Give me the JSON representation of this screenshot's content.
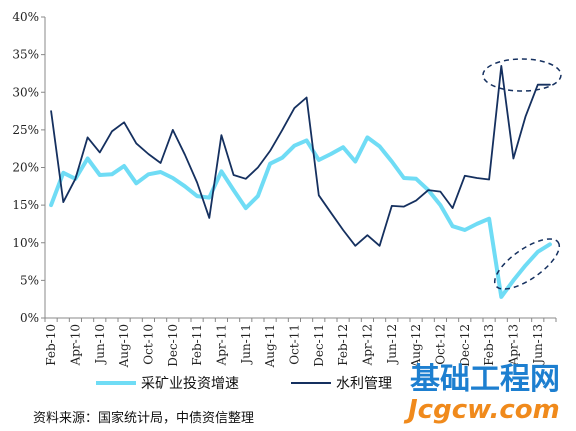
{
  "chart_data": {
    "type": "line",
    "x": [
      "Feb-10",
      "Mar-10",
      "Apr-10",
      "May-10",
      "Jun-10",
      "Jul-10",
      "Aug-10",
      "Sep-10",
      "Oct-10",
      "Nov-10",
      "Dec-10",
      "Jan-11",
      "Feb-11",
      "Mar-11",
      "Apr-11",
      "May-11",
      "Jun-11",
      "Jul-11",
      "Aug-11",
      "Sep-11",
      "Oct-11",
      "Nov-11",
      "Dec-11",
      "Jan-12",
      "Feb-12",
      "Mar-12",
      "Apr-12",
      "May-12",
      "Jun-12",
      "Jul-12",
      "Aug-12",
      "Sep-12",
      "Oct-12",
      "Nov-12",
      "Dec-12",
      "Jan-13",
      "Feb-13",
      "Mar-13",
      "Apr-13",
      "May-13",
      "Jun-13",
      "Jul-13"
    ],
    "x_tick_labels": [
      "Feb-10",
      "Apr-10",
      "Jun-10",
      "Aug-10",
      "Oct-10",
      "Dec-10",
      "Feb-11",
      "Apr-11",
      "Jun-11",
      "Aug-11",
      "Oct-11",
      "Dec-11",
      "Feb-12",
      "Apr-12",
      "Jun-12",
      "Aug-12",
      "Oct-12",
      "Dec-12",
      "Feb-13",
      "Apr-13",
      "Jun-13"
    ],
    "series": [
      {
        "name": "采矿业投资增速",
        "color": "#6fdcf5",
        "values": [
          15.0,
          19.3,
          18.5,
          21.2,
          19.0,
          19.1,
          20.2,
          17.9,
          19.1,
          19.4,
          18.6,
          17.5,
          16.2,
          16.0,
          19.5,
          17.0,
          14.6,
          16.2,
          20.5,
          21.3,
          22.9,
          23.6,
          21.0,
          21.8,
          22.7,
          20.8,
          24.0,
          22.8,
          20.8,
          18.6,
          18.5,
          17.0,
          15.0,
          12.2,
          11.7,
          12.5,
          13.2,
          2.8,
          5.0,
          7.0,
          8.8,
          9.8
        ]
      },
      {
        "name": "水利管理",
        "color": "#15305f",
        "values": [
          27.5,
          15.4,
          18.5,
          24.0,
          22.0,
          24.8,
          26.0,
          23.2,
          21.8,
          20.6,
          25.0,
          21.7,
          18.0,
          13.3,
          24.3,
          19.0,
          18.5,
          20.0,
          22.2,
          25.0,
          27.9,
          29.3,
          16.3,
          14.0,
          11.7,
          9.6,
          11.0,
          9.6,
          14.9,
          14.8,
          15.6,
          17.0,
          16.8,
          14.6,
          18.9,
          18.6,
          18.4,
          33.5,
          21.2,
          26.8,
          31.0,
          31.0
        ]
      }
    ],
    "ylim": [
      0,
      40
    ],
    "y_ticks": [
      0,
      5,
      10,
      15,
      20,
      25,
      30,
      35,
      40
    ],
    "y_tick_format": "%",
    "grid": false,
    "legend": "bottom",
    "annotations": [
      "dashed ellipse around last values of 水利管理 (Feb-13 to Jul-13)",
      "dashed ellipse around last values of 采矿业投资增速 (Mar-13 to Jul-13)"
    ]
  },
  "legend_labels": [
    "采矿业投资增速",
    "水利管理"
  ],
  "source_note": "资料来源：国家统计局，中债资信整理",
  "watermark": {
    "top": "基础工程网",
    "bottom": "Jcgcw.com"
  }
}
